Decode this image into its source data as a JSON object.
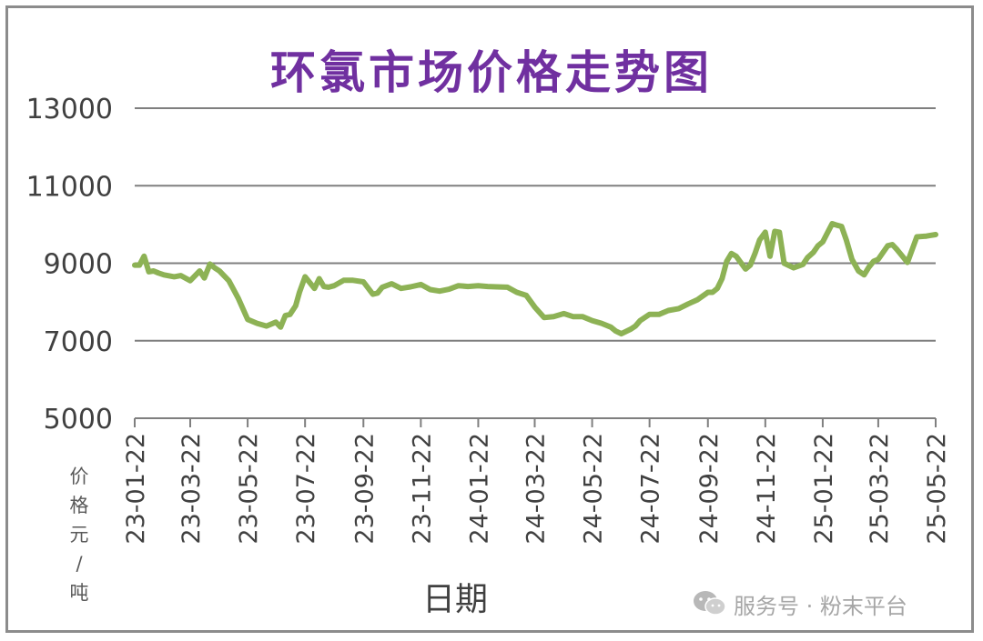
{
  "chart_data": {
    "type": "line",
    "title": "环氯市场价格走势图",
    "xlabel": "日期",
    "ylabel": "价格元/吨",
    "ylim": [
      5000,
      13000
    ],
    "yticks": [
      "13000",
      "11000",
      "9000",
      "7000",
      "5000"
    ],
    "xticks": [
      "23-01-22",
      "23-03-22",
      "23-05-22",
      "23-07-22",
      "23-09-22",
      "23-11-22",
      "24-01-22",
      "24-03-22",
      "24-05-22",
      "24-07-22",
      "24-09-22",
      "24-11-22",
      "25-01-22",
      "25-03-22",
      "25-05-22"
    ],
    "grid": true,
    "line_color": "#8db255",
    "series": [
      {
        "x": [
          "23-01-22",
          "23-01-27",
          "23-02-01",
          "23-02-06",
          "23-02-11",
          "23-02-16",
          "23-02-22",
          "23-03-05",
          "23-03-12",
          "23-03-22",
          "23-04-01",
          "23-04-06",
          "23-04-12",
          "23-04-17",
          "23-04-22",
          "23-05-02",
          "23-05-12",
          "23-05-22",
          "23-06-01",
          "23-06-11",
          "23-06-21",
          "23-06-26",
          "23-07-01",
          "23-07-06",
          "23-07-12",
          "23-07-16",
          "23-07-22",
          "23-08-01",
          "23-08-06",
          "23-08-11",
          "23-08-16",
          "23-08-22",
          "23-09-01",
          "23-09-11",
          "23-09-22",
          "23-10-02",
          "23-10-07",
          "23-10-12",
          "23-10-22",
          "23-11-01",
          "23-11-11",
          "23-11-22",
          "23-12-02",
          "23-12-12",
          "23-12-22",
          "24-01-01",
          "24-01-11",
          "24-01-22",
          "24-02-01",
          "24-02-11",
          "24-02-22",
          "24-03-03",
          "24-03-13",
          "24-03-22",
          "24-04-01",
          "24-04-11",
          "24-04-22",
          "24-05-02",
          "24-05-12",
          "24-05-22",
          "24-06-01",
          "24-06-11",
          "24-06-16",
          "24-06-22",
          "24-07-02",
          "24-07-07",
          "24-07-12",
          "24-07-22",
          "24-08-01",
          "24-08-11",
          "24-08-22",
          "24-09-01",
          "24-09-11",
          "24-09-22",
          "24-09-27",
          "24-10-02",
          "24-10-07",
          "24-10-12",
          "24-10-17",
          "24-10-22",
          "24-11-01",
          "24-11-06",
          "24-11-11",
          "24-11-16",
          "24-11-22",
          "24-11-27",
          "24-12-02",
          "24-12-07",
          "24-12-12",
          "24-12-22",
          "25-01-01",
          "25-01-06",
          "25-01-12",
          "25-01-17",
          "25-01-22",
          "25-02-01",
          "25-02-06",
          "25-02-11",
          "25-02-16",
          "25-02-22",
          "25-03-01",
          "25-03-07",
          "25-03-12",
          "25-03-17",
          "25-03-22",
          "25-04-01",
          "25-04-06",
          "25-04-11",
          "25-04-16",
          "25-04-22",
          "25-05-02",
          "25-05-12",
          "25-05-17",
          "25-05-22"
        ],
        "values": [
          8950,
          8950,
          9180,
          8780,
          8800,
          8750,
          8700,
          8650,
          8680,
          8550,
          8800,
          8620,
          8980,
          8880,
          8800,
          8550,
          8100,
          7550,
          7450,
          7380,
          7480,
          7350,
          7650,
          7680,
          7900,
          8250,
          8650,
          8350,
          8600,
          8400,
          8380,
          8420,
          8560,
          8560,
          8520,
          8200,
          8230,
          8380,
          8470,
          8350,
          8390,
          8450,
          8320,
          8280,
          8330,
          8420,
          8400,
          8420,
          8400,
          8390,
          8380,
          8250,
          8170,
          7870,
          7600,
          7620,
          7700,
          7620,
          7620,
          7520,
          7450,
          7350,
          7250,
          7180,
          7300,
          7380,
          7520,
          7680,
          7680,
          7780,
          7830,
          7950,
          8060,
          8250,
          8250,
          8350,
          8600,
          9050,
          9250,
          9180,
          8850,
          8950,
          9250,
          9600,
          9800,
          9180,
          9820,
          9800,
          9000,
          8880,
          8970,
          9150,
          9280,
          9450,
          9550,
          10020,
          9980,
          9950,
          9600,
          9100,
          8800,
          8700,
          8900,
          9050,
          9100,
          9450,
          9480,
          9350,
          9200,
          9020,
          9680,
          9700,
          9720,
          9740
        ]
      }
    ]
  },
  "watermark": {
    "icon": "wechat-icon",
    "text": "服务号 · 粉末平台"
  }
}
